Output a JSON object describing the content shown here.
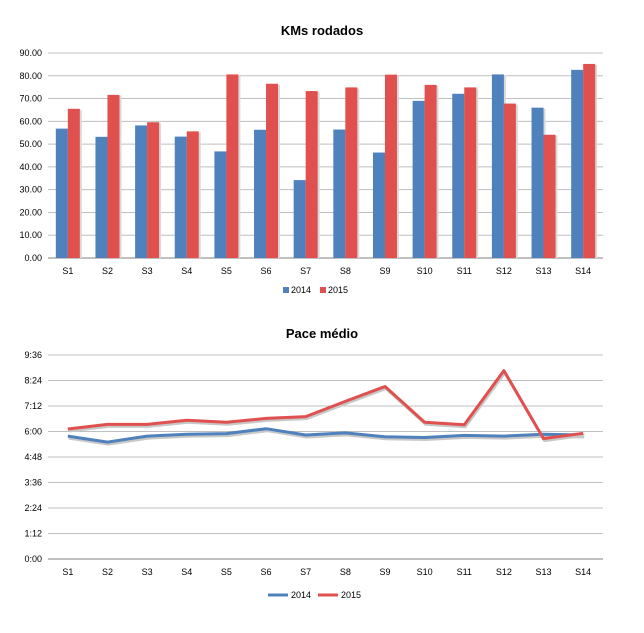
{
  "chart_data": [
    {
      "type": "bar",
      "title": "KMs rodados",
      "categories": [
        "S1",
        "S2",
        "S3",
        "S4",
        "S5",
        "S6",
        "S7",
        "S8",
        "S9",
        "S10",
        "S11",
        "S12",
        "S13",
        "S14"
      ],
      "y_ticks": [
        "0.00",
        "10.00",
        "20.00",
        "30.00",
        "40.00",
        "50.00",
        "60.00",
        "70.00",
        "80.00",
        "90.00"
      ],
      "ylim": [
        0,
        90
      ],
      "grid": true,
      "legend_position": "bottom",
      "series": [
        {
          "name": "2014",
          "color": "#4f81bd",
          "values": [
            56.8,
            53.2,
            58.2,
            53.3,
            46.8,
            56.3,
            34.2,
            56.4,
            46.3,
            69.0,
            72.1,
            80.6,
            66.0,
            82.6
          ]
        },
        {
          "name": "2015",
          "color": "#e0504f",
          "values": [
            65.5,
            71.6,
            59.6,
            55.6,
            80.6,
            76.5,
            73.3,
            74.9,
            80.5,
            76.0,
            74.9,
            67.8,
            54.1,
            85.2
          ]
        }
      ]
    },
    {
      "type": "line",
      "title": "Pace médio",
      "categories": [
        "S1",
        "S2",
        "S3",
        "S4",
        "S5",
        "S6",
        "S7",
        "S8",
        "S9",
        "S10",
        "S11",
        "S12",
        "S13",
        "S14"
      ],
      "y_ticks": [
        "0:00",
        "1:12",
        "2:24",
        "3:36",
        "4:48",
        "6:00",
        "7:12",
        "8:24",
        "9:36"
      ],
      "ylim": [
        0,
        576
      ],
      "y_unit": "seconds per km (axis shows m:ss)",
      "grid": true,
      "legend_position": "bottom",
      "series": [
        {
          "name": "2014",
          "color": "#4f81bd",
          "values": [
            347,
            330,
            347,
            352,
            354,
            368,
            350,
            356,
            345,
            343,
            349,
            347,
            352,
            350
          ]
        },
        {
          "name": "2015",
          "color": "#e0504f",
          "values": [
            367,
            380,
            380,
            392,
            386,
            397,
            402,
            445,
            487,
            386,
            379,
            532,
            340,
            355
          ]
        }
      ]
    }
  ]
}
